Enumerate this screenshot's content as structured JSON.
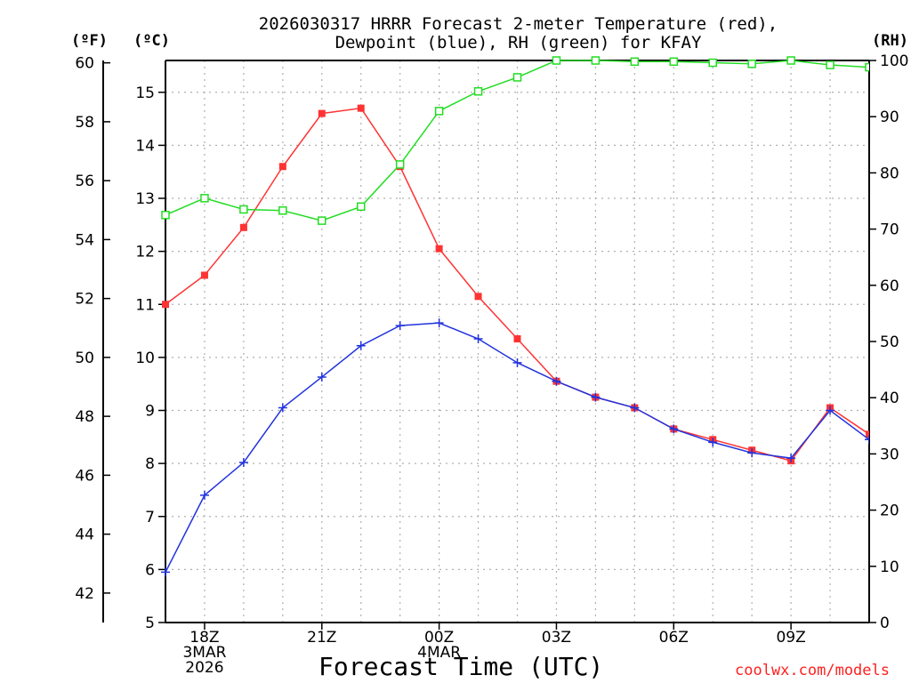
{
  "title_line1": "2026030317 HRRR Forecast 2-meter Temperature (red),",
  "title_line2": "Dewpoint (blue), RH (green) for KFAY",
  "units": {
    "fahrenheit": "(ºF)",
    "celsius": "(ºC)",
    "rh": "(RH)"
  },
  "xlabel": "Forecast Time (UTC)",
  "credit": "coolwx.com/models",
  "colors": {
    "temperature": "#ff3333",
    "dewpoint": "#2233dd",
    "rh": "#22dd22",
    "grid": "#b0b0b0"
  },
  "chart_data": {
    "type": "line",
    "x": [
      "17Z",
      "18Z",
      "19Z",
      "20Z",
      "21Z",
      "22Z",
      "23Z",
      "00Z",
      "01Z",
      "02Z",
      "03Z",
      "04Z",
      "05Z",
      "06Z",
      "07Z",
      "08Z",
      "09Z",
      "10Z",
      "11Z"
    ],
    "x_tick_labels": [
      {
        "index": 1,
        "lines": [
          "18Z",
          "3MAR",
          "2026"
        ]
      },
      {
        "index": 4,
        "lines": [
          "21Z"
        ]
      },
      {
        "index": 7,
        "lines": [
          "00Z",
          "4MAR"
        ]
      },
      {
        "index": 10,
        "lines": [
          "03Z"
        ]
      },
      {
        "index": 13,
        "lines": [
          "06Z"
        ]
      },
      {
        "index": 16,
        "lines": [
          "09Z"
        ]
      }
    ],
    "celsius_axis": {
      "range": [
        5,
        15.6
      ],
      "ticks": [
        5,
        6,
        7,
        8,
        9,
        10,
        11,
        12,
        13,
        14,
        15
      ]
    },
    "fahrenheit_axis": {
      "range": [
        41,
        60.08
      ],
      "ticks": [
        42,
        44,
        46,
        48,
        50,
        52,
        54,
        56,
        58,
        60
      ]
    },
    "rh_axis": {
      "range": [
        0,
        100
      ],
      "ticks": [
        0,
        10,
        20,
        30,
        40,
        50,
        60,
        70,
        80,
        90,
        100
      ]
    },
    "grid": true,
    "series": [
      {
        "key": "temperature",
        "axis": "celsius",
        "marker": "filled-square",
        "values": [
          11.0,
          11.55,
          12.45,
          13.6,
          14.6,
          14.7,
          13.6,
          12.05,
          11.15,
          10.35,
          9.55,
          9.25,
          9.05,
          8.65,
          8.45,
          8.25,
          8.05,
          9.05,
          8.55
        ]
      },
      {
        "key": "dewpoint",
        "axis": "celsius",
        "marker": "plus",
        "values": [
          5.95,
          7.4,
          8.02,
          9.05,
          9.63,
          10.22,
          10.6,
          10.65,
          10.35,
          9.9,
          9.55,
          9.25,
          9.05,
          8.65,
          8.4,
          8.2,
          8.1,
          9.0,
          8.45
        ]
      },
      {
        "key": "rh",
        "axis": "rh",
        "marker": "open-square",
        "values": [
          72.5,
          75.5,
          73.5,
          73.3,
          71.5,
          74.0,
          81.5,
          91.0,
          94.5,
          97.0,
          100.0,
          100.0,
          99.8,
          99.8,
          99.6,
          99.4,
          100.0,
          99.2,
          98.8
        ]
      }
    ]
  }
}
